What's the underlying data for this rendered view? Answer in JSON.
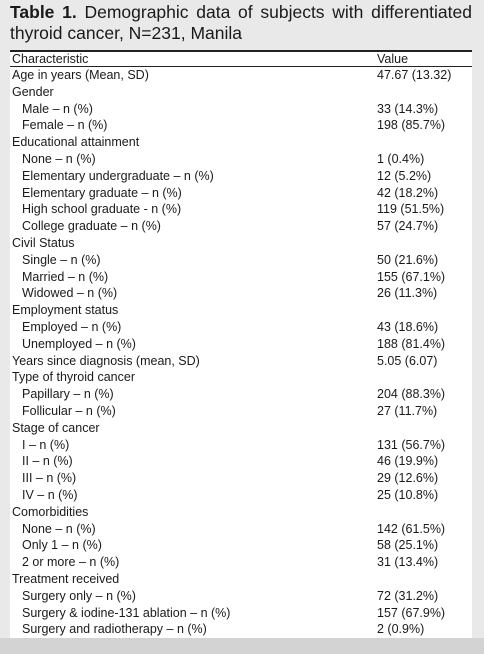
{
  "caption": {
    "label": "Table 1.",
    "text": " Demographic data of subjects with differentiated thyroid cancer, N=231, Manila"
  },
  "table": {
    "headers": [
      "Characteristic",
      "Value"
    ],
    "rows": [
      {
        "c": "Age in years (Mean, SD)",
        "v": "47.67 (13.32)",
        "sub": false
      },
      {
        "c": "Gender",
        "v": "",
        "sub": false
      },
      {
        "c": "Male – n (%)",
        "v": "33 (14.3%)",
        "sub": true
      },
      {
        "c": "Female – n (%)",
        "v": "198 (85.7%)",
        "sub": true
      },
      {
        "c": "Educational attainment",
        "v": "",
        "sub": false
      },
      {
        "c": "None – n (%)",
        "v": "1 (0.4%)",
        "sub": true
      },
      {
        "c": "Elementary undergraduate – n (%)",
        "v": "12 (5.2%)",
        "sub": true
      },
      {
        "c": "Elementary graduate – n (%)",
        "v": "42 (18.2%)",
        "sub": true
      },
      {
        "c": "High school graduate - n (%)",
        "v": "119 (51.5%)",
        "sub": true
      },
      {
        "c": "College graduate – n (%)",
        "v": "57 (24.7%)",
        "sub": true
      },
      {
        "c": "Civil Status",
        "v": "",
        "sub": false
      },
      {
        "c": "Single – n (%)",
        "v": "50 (21.6%)",
        "sub": true
      },
      {
        "c": "Married – n (%)",
        "v": "155 (67.1%)",
        "sub": true
      },
      {
        "c": "Widowed – n (%)",
        "v": "26 (11.3%)",
        "sub": true
      },
      {
        "c": "Employment status",
        "v": "",
        "sub": false
      },
      {
        "c": "Employed – n (%)",
        "v": "43 (18.6%)",
        "sub": true
      },
      {
        "c": "Unemployed – n (%)",
        "v": "188 (81.4%)",
        "sub": true
      },
      {
        "c": "Years since diagnosis (mean, SD)",
        "v": "5.05 (6.07)",
        "sub": false
      },
      {
        "c": "Type of thyroid cancer",
        "v": "",
        "sub": false
      },
      {
        "c": "Papillary – n (%)",
        "v": "204 (88.3%)",
        "sub": true
      },
      {
        "c": "Follicular – n (%)",
        "v": "27 (11.7%)",
        "sub": true
      },
      {
        "c": "Stage of cancer",
        "v": "",
        "sub": false
      },
      {
        "c": "I – n (%)",
        "v": "131 (56.7%)",
        "sub": true
      },
      {
        "c": "II – n (%)",
        "v": "46 (19.9%)",
        "sub": true
      },
      {
        "c": "III – n (%)",
        "v": "29 (12.6%)",
        "sub": true
      },
      {
        "c": "IV – n (%)",
        "v": "25 (10.8%)",
        "sub": true
      },
      {
        "c": "Comorbidities",
        "v": "",
        "sub": false
      },
      {
        "c": "None – n (%)",
        "v": "142 (61.5%)",
        "sub": true
      },
      {
        "c": "Only 1 – n (%)",
        "v": "58 (25.1%)",
        "sub": true
      },
      {
        "c": "2 or more – n (%)",
        "v": "31 (13.4%)",
        "sub": true
      },
      {
        "c": "Treatment received",
        "v": "",
        "sub": false
      },
      {
        "c": "Surgery only – n (%)",
        "v": "72 (31.2%)",
        "sub": true
      },
      {
        "c": "Surgery & iodine-131 ablation – n (%)",
        "v": "157 (67.9%)",
        "sub": true
      },
      {
        "c": "Surgery and radiotherapy – n (%)",
        "v": "2 (0.9%)",
        "sub": true
      }
    ]
  }
}
